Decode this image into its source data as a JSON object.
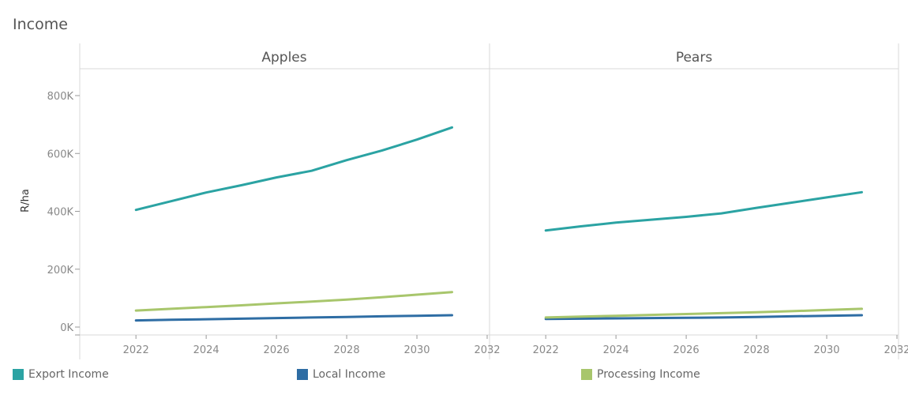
{
  "page_title": "Income",
  "chart_data": {
    "type": "line",
    "title": "Income",
    "ylabel": "R/ha",
    "ylim": [
      0,
      900000
    ],
    "y_ticks": [
      0,
      200000,
      400000,
      600000,
      800000
    ],
    "y_tick_labels": [
      "0K",
      "200K",
      "400K",
      "600K",
      "800K"
    ],
    "xlim": [
      2020.4,
      2032
    ],
    "x_ticks": [
      2022,
      2024,
      2026,
      2028,
      2030,
      2032
    ],
    "x_tick_labels": [
      "2022",
      "2024",
      "2026",
      "2028",
      "2030",
      "2032"
    ],
    "legend": [
      {
        "name": "Export Income",
        "color": "#2ba3a3"
      },
      {
        "name": "Local Income",
        "color": "#2e6da4"
      },
      {
        "name": "Processing Income",
        "color": "#a8c66c"
      }
    ],
    "panels": [
      {
        "name": "Apples",
        "x": [
          2022,
          2023,
          2024,
          2025,
          2026,
          2027,
          2028,
          2029,
          2030,
          2031
        ],
        "series": [
          {
            "name": "Export Income",
            "values": [
              405000,
              435000,
              465000,
              490000,
              517000,
              540000,
              577000,
              610000,
              648000,
              690000
            ]
          },
          {
            "name": "Local Income",
            "values": [
              23000,
              25000,
              27000,
              29000,
              31000,
              33000,
              35000,
              37000,
              39000,
              41000
            ]
          },
          {
            "name": "Processing Income",
            "values": [
              57000,
              63000,
              69000,
              75000,
              82000,
              88000,
              95000,
              103000,
              112000,
              121000
            ]
          }
        ]
      },
      {
        "name": "Pears",
        "x": [
          2022,
          2023,
          2024,
          2025,
          2026,
          2027,
          2028,
          2029,
          2030,
          2031
        ],
        "series": [
          {
            "name": "Export Income",
            "values": [
              334000,
              348000,
              361000,
              371000,
              381000,
              393000,
              412000,
              430000,
              448000,
              466000
            ]
          },
          {
            "name": "Local Income",
            "values": [
              28000,
              29000,
              30000,
              31000,
              32000,
              33000,
              35000,
              37000,
              39000,
              41000
            ]
          },
          {
            "name": "Processing Income",
            "values": [
              33000,
              36000,
              39000,
              42000,
              45000,
              48000,
              51000,
              55000,
              59000,
              63000
            ]
          }
        ]
      }
    ]
  }
}
